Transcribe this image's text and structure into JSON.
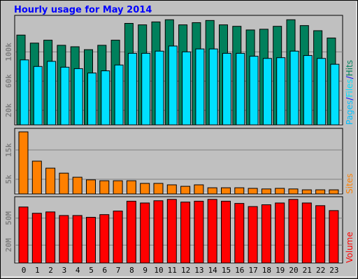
{
  "chart_data": [
    {
      "type": "bar",
      "title": "Hourly usage for May 2014",
      "pages_label": {
        "text": "Pages",
        "color": "#00C0FF"
      },
      "separator": "/",
      "series": [
        {
          "name": "Hits",
          "color": "#00805C",
          "values": [
            123000,
            112000,
            116000,
            109000,
            107000,
            103000,
            109000,
            116000,
            139000,
            137000,
            141000,
            144000,
            137000,
            140000,
            143000,
            137000,
            135000,
            130000,
            131000,
            135000,
            144000,
            136000,
            129000,
            119000
          ]
        },
        {
          "name": "Files",
          "color": "#00E0FF",
          "values": [
            89000,
            80000,
            87000,
            79000,
            77000,
            71000,
            74000,
            82000,
            98000,
            98000,
            101000,
            108000,
            100000,
            104000,
            104000,
            98000,
            98000,
            94000,
            91000,
            92000,
            101000,
            95000,
            91000,
            83000
          ]
        }
      ],
      "ylim": [
        0,
        150000
      ],
      "yticks": [
        {
          "value": 20000,
          "label": "20k"
        },
        {
          "value": 60000,
          "label": "60k"
        },
        {
          "value": 100000,
          "label": "100k"
        }
      ],
      "grid": true
    },
    {
      "type": "bar",
      "y_label": "Sites",
      "color": "#FF8000",
      "values": [
        21200,
        11200,
        8800,
        7100,
        5700,
        4800,
        4500,
        4500,
        4500,
        3600,
        3600,
        3100,
        2600,
        3100,
        2100,
        2100,
        2100,
        1900,
        1700,
        1900,
        1700,
        1400,
        1400,
        1400
      ],
      "ylim": [
        0,
        22400
      ],
      "yticks": [
        {
          "value": 5000,
          "label": "5k"
        },
        {
          "value": 15000,
          "label": "15k"
        }
      ],
      "grid": true
    },
    {
      "type": "bar",
      "y_label": "Volume",
      "color": "#FF0000",
      "categories": [
        "0",
        "1",
        "2",
        "3",
        "4",
        "5",
        "6",
        "7",
        "8",
        "9",
        "10",
        "11",
        "12",
        "13",
        "14",
        "15",
        "16",
        "17",
        "18",
        "19",
        "20",
        "21",
        "22",
        "23"
      ],
      "values": [
        62500000,
        55500000,
        57000000,
        53000000,
        53000000,
        51000000,
        54000000,
        58000000,
        69000000,
        67000000,
        69500000,
        71000000,
        68000000,
        69000000,
        71000000,
        69000000,
        66500000,
        63000000,
        65000000,
        67000000,
        71000000,
        67000000,
        64000000,
        58500000
      ],
      "ylim": [
        0,
        74000000
      ],
      "yticks": [
        {
          "value": 20000000,
          "label": "20M"
        },
        {
          "value": 50000000,
          "label": "50M"
        }
      ],
      "grid": true
    }
  ]
}
